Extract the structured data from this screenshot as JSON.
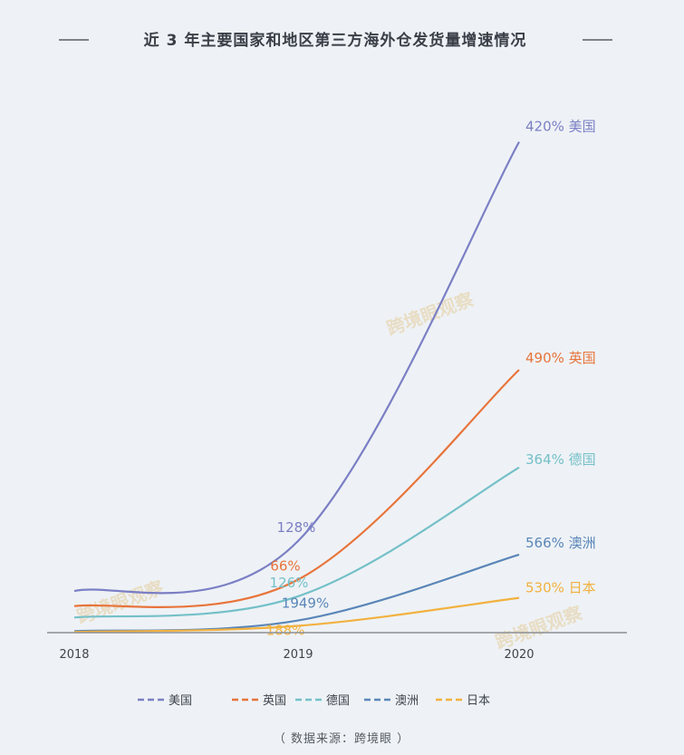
{
  "chart_data": {
    "type": "line",
    "title": "近 3 年主要国家和地区第三方海外仓发货量增速情况",
    "categories": [
      "2018",
      "2019",
      "2020"
    ],
    "series": [
      {
        "name": "美国",
        "color": "#7b7fc4",
        "values": [
          5.5,
          12.1,
          64.8
        ],
        "labels": [
          "",
          "128%",
          "420% 美国"
        ]
      },
      {
        "name": "英国",
        "color": "#e8743b",
        "values": [
          3.5,
          7.0,
          34.7
        ],
        "labels": [
          "",
          "66%",
          "490% 英国"
        ]
      },
      {
        "name": "德国",
        "color": "#74c0c8",
        "values": [
          2.0,
          4.8,
          21.8
        ],
        "labels": [
          "",
          "126%",
          "364% 德国"
        ]
      },
      {
        "name": "澳洲",
        "color": "#5a86b8",
        "values": [
          0.2,
          1.6,
          10.3
        ],
        "labels": [
          "",
          "1949%",
          "566% 澳洲"
        ]
      },
      {
        "name": "日本",
        "color": "#f2b13f",
        "values": [
          0.1,
          0.9,
          4.6
        ],
        "labels": [
          "",
          "188%",
          "530% 日本"
        ]
      }
    ],
    "ylim": [
      0,
      70
    ],
    "grid": false,
    "legend_position": "bottom"
  },
  "source": "（ 数据来源：跨境眼 ）",
  "watermark": "跨境眼观察"
}
